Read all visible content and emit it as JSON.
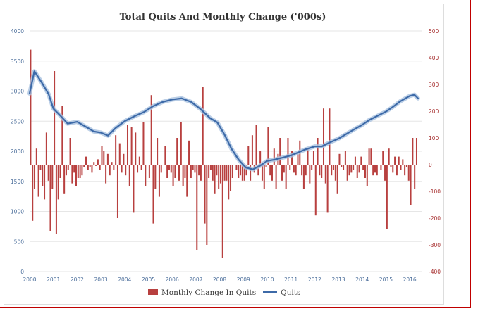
{
  "chart_data": {
    "type": "bar+line",
    "title": "Total Quits And Monthly Change ('000s)",
    "x_tick_labels": [
      "2000",
      "2001",
      "2002",
      "2003",
      "2004",
      "2005",
      "2006",
      "2007",
      "2008",
      "2009",
      "2010",
      "2011",
      "2012",
      "2013",
      "2014",
      "2015",
      "2016"
    ],
    "y_left_ticks": [
      "0",
      "500",
      "1000",
      "1500",
      "2000",
      "2500",
      "3000",
      "3500",
      "4000"
    ],
    "y_left_range": [
      0,
      4000
    ],
    "y_right_ticks": [
      "-400",
      "-300",
      "-200",
      "-100",
      "0",
      "100",
      "200",
      "300",
      "400",
      "500"
    ],
    "y_right_range": [
      -400,
      500
    ],
    "grid": "horizontal",
    "legend_position": "bottom",
    "colors": {
      "bars": "#b8403f",
      "line": "#3d6aa8",
      "line_glow": "#a9c2e0",
      "grid": "#e6e6e6"
    },
    "series": [
      {
        "name": "Monthly Change In Quits",
        "kind": "bar",
        "axis": "right",
        "values": [
          430,
          -210,
          -90,
          60,
          -120,
          -20,
          -80,
          -130,
          120,
          -60,
          -250,
          -90,
          350,
          -260,
          -130,
          -50,
          220,
          -110,
          -40,
          -20,
          100,
          -70,
          -30,
          -80,
          -50,
          -50,
          -40,
          -10,
          30,
          -20,
          -10,
          -30,
          10,
          -5,
          20,
          -20,
          70,
          50,
          -70,
          40,
          -40,
          10,
          -20,
          110,
          -200,
          80,
          -30,
          40,
          -40,
          150,
          -80,
          140,
          -180,
          120,
          -30,
          30,
          -20,
          160,
          -80,
          0,
          -50,
          260,
          -220,
          -90,
          100,
          -120,
          -30,
          0,
          70,
          -50,
          -20,
          -30,
          -80,
          -50,
          100,
          -60,
          160,
          -80,
          -50,
          -120,
          90,
          -50,
          -20,
          -30,
          -320,
          -40,
          -60,
          290,
          -220,
          -300,
          -50,
          -20,
          -60,
          -110,
          -40,
          -90,
          -70,
          -350,
          -60,
          -60,
          -130,
          -100,
          -50,
          0,
          -20,
          -50,
          -40,
          -60,
          -60,
          -40,
          70,
          -60,
          110,
          -30,
          150,
          -40,
          50,
          -60,
          -90,
          -10,
          140,
          -40,
          -60,
          60,
          -90,
          40,
          100,
          -60,
          -30,
          -90,
          100,
          -20,
          50,
          -30,
          -40,
          40,
          90,
          -40,
          -90,
          -40,
          60,
          -70,
          -20,
          50,
          -190,
          100,
          -40,
          -50,
          210,
          -70,
          -180,
          210,
          -40,
          -20,
          -60,
          -110,
          40,
          -10,
          -20,
          50,
          -60,
          -40,
          -30,
          -20,
          30,
          -50,
          -30,
          30,
          -20,
          -50,
          -80,
          60,
          60,
          -40,
          -30,
          -40,
          0,
          -20,
          50,
          -60,
          -240,
          60,
          -10,
          -30,
          30,
          -40,
          30,
          -20,
          20,
          -40,
          -10,
          -60,
          -150,
          100,
          -90,
          100
        ]
      },
      {
        "name": "Quits",
        "kind": "line",
        "axis": "left",
        "x": [
          2000,
          2000.2,
          2000.5,
          2000.8,
          2001,
          2001.3,
          2001.6,
          2002,
          2002.4,
          2002.7,
          2003,
          2003.3,
          2003.6,
          2004,
          2004.4,
          2004.8,
          2005.2,
          2005.6,
          2006,
          2006.4,
          2006.8,
          2007.2,
          2007.6,
          2007.9,
          2008.2,
          2008.5,
          2008.8,
          2009.1,
          2009.4,
          2009.7,
          2010,
          2010.3,
          2010.6,
          2011,
          2011.3,
          2011.6,
          2012,
          2012.3,
          2012.6,
          2013,
          2013.3,
          2013.6,
          2014,
          2014.3,
          2014.6,
          2015,
          2015.3,
          2015.6,
          2016,
          2016.2,
          2016.35
        ],
        "values": [
          2960,
          3330,
          3150,
          2950,
          2710,
          2590,
          2460,
          2490,
          2400,
          2330,
          2310,
          2260,
          2380,
          2500,
          2580,
          2650,
          2750,
          2820,
          2860,
          2880,
          2820,
          2700,
          2550,
          2480,
          2280,
          2040,
          1860,
          1730,
          1700,
          1760,
          1840,
          1860,
          1890,
          1930,
          1980,
          2030,
          2080,
          2080,
          2140,
          2210,
          2280,
          2350,
          2440,
          2520,
          2580,
          2660,
          2740,
          2830,
          2920,
          2940,
          2880
        ]
      }
    ]
  }
}
